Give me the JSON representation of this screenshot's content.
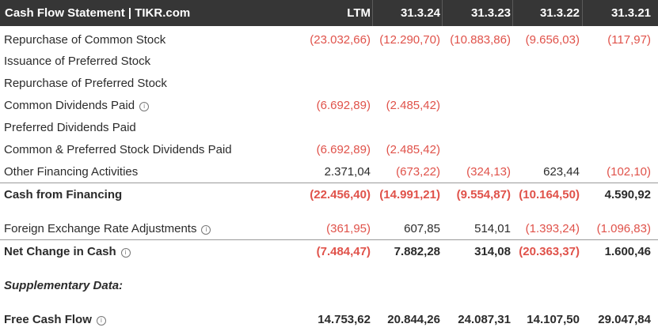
{
  "header": {
    "title": "Cash Flow Statement | TIKR.com",
    "columns": [
      "LTM",
      "31.3.24",
      "31.3.23",
      "31.3.22",
      "31.3.21"
    ]
  },
  "rows": [
    {
      "label": "Repurchase of Common Stock",
      "info": false,
      "values": [
        "(23.032,66)",
        "(12.290,70)",
        "(10.883,86)",
        "(9.656,03)",
        "(117,97)"
      ]
    },
    {
      "label": "Issuance of Preferred Stock",
      "info": false,
      "values": [
        "",
        "",
        "",
        "",
        ""
      ]
    },
    {
      "label": "Repurchase of Preferred Stock",
      "info": false,
      "values": [
        "",
        "",
        "",
        "",
        ""
      ]
    },
    {
      "label": "Common Dividends Paid",
      "info": true,
      "values": [
        "(6.692,89)",
        "(2.485,42)",
        "",
        "",
        ""
      ]
    },
    {
      "label": "Preferred Dividends Paid",
      "info": false,
      "values": [
        "",
        "",
        "",
        "",
        ""
      ]
    },
    {
      "label": "Common & Preferred Stock Dividends Paid",
      "info": false,
      "values": [
        "(6.692,89)",
        "(2.485,42)",
        "",
        "",
        ""
      ]
    },
    {
      "label": "Other Financing Activities",
      "info": false,
      "values": [
        "2.371,04",
        "(673,22)",
        "(324,13)",
        "623,44",
        "(102,10)"
      ]
    },
    {
      "label": "Cash from Financing",
      "info": false,
      "values": [
        "(22.456,40)",
        "(14.991,21)",
        "(9.554,87)",
        "(10.164,50)",
        "4.590,92"
      ]
    },
    {
      "label": "Foreign Exchange Rate Adjustments",
      "info": true,
      "values": [
        "(361,95)",
        "607,85",
        "514,01",
        "(1.393,24)",
        "(1.096,83)"
      ]
    },
    {
      "label": "Net Change in Cash",
      "info": true,
      "values": [
        "(7.484,47)",
        "7.882,28",
        "314,08",
        "(20.363,37)",
        "1.600,46"
      ]
    },
    {
      "label": "Supplementary Data:",
      "info": false,
      "values": [
        "",
        "",
        "",
        "",
        ""
      ]
    },
    {
      "label": "Free Cash Flow",
      "info": true,
      "values": [
        "14.753,62",
        "20.844,26",
        "24.087,31",
        "14.107,50",
        "29.047,84"
      ]
    }
  ],
  "info_icon": "info-circle-icon",
  "colors": {
    "header_bg": "#363636",
    "negative": "#e0524a",
    "text": "#2b2b2b"
  }
}
